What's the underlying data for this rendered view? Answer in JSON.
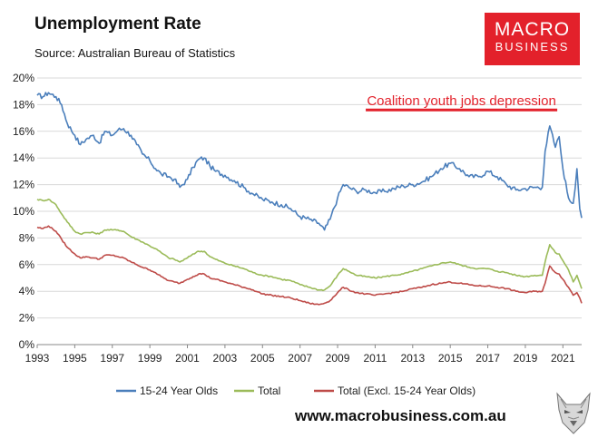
{
  "header": {
    "title": "Unemployment Rate",
    "source": "Source: Australian Bureau of Statistics"
  },
  "logo": {
    "line1": "MACRO",
    "line2": "BUSINESS"
  },
  "footer": {
    "url": "www.macrobusiness.com.au"
  },
  "colors": {
    "youth": "#4a7ebb",
    "total": "#9bbb59",
    "adult": "#be4b48",
    "annotation": "#e3212b",
    "brand": "#e3212b"
  },
  "chart_data": {
    "type": "line",
    "title": "Unemployment Rate",
    "xlabel": "",
    "ylabel": "",
    "xlim": [
      1993,
      2022
    ],
    "ylim": [
      0,
      20
    ],
    "y_ticks": [
      "0%",
      "2%",
      "4%",
      "6%",
      "8%",
      "10%",
      "12%",
      "14%",
      "16%",
      "18%",
      "20%"
    ],
    "x_ticks": [
      "1993",
      "1995",
      "1997",
      "1999",
      "2001",
      "2003",
      "2005",
      "2007",
      "2009",
      "2011",
      "2013",
      "2015",
      "2017",
      "2019",
      "2021"
    ],
    "grid": true,
    "legend_position": "bottom",
    "annotation": {
      "text": "Coalition youth jobs depression",
      "x_start": 2010.5,
      "x_end": 2020.7,
      "y": 17.6
    },
    "series": [
      {
        "name": "15-24 Year Olds",
        "color": "#4a7ebb",
        "points": [
          [
            1993.0,
            18.7
          ],
          [
            1993.3,
            18.6
          ],
          [
            1993.6,
            18.9
          ],
          [
            1994.0,
            18.6
          ],
          [
            1994.3,
            18.0
          ],
          [
            1994.6,
            16.6
          ],
          [
            1995.0,
            15.7
          ],
          [
            1995.3,
            15.0
          ],
          [
            1995.6,
            15.4
          ],
          [
            1996.0,
            15.7
          ],
          [
            1996.3,
            15.1
          ],
          [
            1996.6,
            16.0
          ],
          [
            1997.0,
            15.7
          ],
          [
            1997.3,
            16.1
          ],
          [
            1997.6,
            16.2
          ],
          [
            1998.0,
            15.7
          ],
          [
            1998.3,
            15.0
          ],
          [
            1998.6,
            14.3
          ],
          [
            1999.0,
            13.8
          ],
          [
            1999.3,
            13.2
          ],
          [
            1999.6,
            12.8
          ],
          [
            2000.0,
            12.6
          ],
          [
            2000.3,
            12.4
          ],
          [
            2000.6,
            11.8
          ],
          [
            2001.0,
            12.4
          ],
          [
            2001.3,
            13.3
          ],
          [
            2001.6,
            13.9
          ],
          [
            2001.9,
            14.0
          ],
          [
            2002.2,
            13.4
          ],
          [
            2002.5,
            13.0
          ],
          [
            2003.0,
            12.7
          ],
          [
            2003.5,
            12.3
          ],
          [
            2004.0,
            11.8
          ],
          [
            2004.5,
            11.3
          ],
          [
            2005.0,
            10.9
          ],
          [
            2005.5,
            10.7
          ],
          [
            2006.0,
            10.5
          ],
          [
            2006.5,
            10.2
          ],
          [
            2007.0,
            9.6
          ],
          [
            2007.5,
            9.4
          ],
          [
            2008.0,
            9.1
          ],
          [
            2008.3,
            8.6
          ],
          [
            2008.6,
            9.4
          ],
          [
            2009.0,
            11.0
          ],
          [
            2009.3,
            12.0
          ],
          [
            2009.6,
            11.8
          ],
          [
            2010.0,
            11.5
          ],
          [
            2010.5,
            11.6
          ],
          [
            2011.0,
            11.4
          ],
          [
            2011.5,
            11.5
          ],
          [
            2012.0,
            11.7
          ],
          [
            2012.5,
            11.9
          ],
          [
            2013.0,
            12.0
          ],
          [
            2013.5,
            12.2
          ],
          [
            2014.0,
            12.6
          ],
          [
            2014.5,
            13.2
          ],
          [
            2015.0,
            13.6
          ],
          [
            2015.5,
            13.2
          ],
          [
            2016.0,
            12.6
          ],
          [
            2016.5,
            12.6
          ],
          [
            2017.0,
            13.0
          ],
          [
            2017.5,
            12.6
          ],
          [
            2018.0,
            12.0
          ],
          [
            2018.5,
            11.6
          ],
          [
            2019.0,
            11.7
          ],
          [
            2019.5,
            11.8
          ],
          [
            2019.9,
            11.8
          ],
          [
            2020.05,
            14.5
          ],
          [
            2020.3,
            16.4
          ],
          [
            2020.6,
            14.8
          ],
          [
            2020.8,
            15.6
          ],
          [
            2021.0,
            13.2
          ],
          [
            2021.3,
            11.0
          ],
          [
            2021.55,
            10.6
          ],
          [
            2021.75,
            13.2
          ],
          [
            2021.9,
            10.2
          ],
          [
            2022.0,
            9.5
          ]
        ]
      },
      {
        "name": "Total",
        "color": "#9bbb59",
        "points": [
          [
            1993.0,
            10.9
          ],
          [
            1993.3,
            10.8
          ],
          [
            1993.6,
            10.9
          ],
          [
            1994.0,
            10.5
          ],
          [
            1994.3,
            9.8
          ],
          [
            1994.6,
            9.2
          ],
          [
            1995.0,
            8.5
          ],
          [
            1995.3,
            8.3
          ],
          [
            1995.6,
            8.4
          ],
          [
            1996.0,
            8.4
          ],
          [
            1996.3,
            8.3
          ],
          [
            1996.6,
            8.6
          ],
          [
            1997.0,
            8.6
          ],
          [
            1997.3,
            8.6
          ],
          [
            1997.6,
            8.5
          ],
          [
            1998.0,
            8.1
          ],
          [
            1998.3,
            7.9
          ],
          [
            1998.6,
            7.7
          ],
          [
            1999.0,
            7.4
          ],
          [
            1999.3,
            7.2
          ],
          [
            1999.6,
            6.9
          ],
          [
            2000.0,
            6.5
          ],
          [
            2000.3,
            6.4
          ],
          [
            2000.6,
            6.2
          ],
          [
            2001.0,
            6.5
          ],
          [
            2001.3,
            6.8
          ],
          [
            2001.6,
            7.0
          ],
          [
            2001.9,
            7.0
          ],
          [
            2002.2,
            6.6
          ],
          [
            2002.5,
            6.4
          ],
          [
            2003.0,
            6.1
          ],
          [
            2003.5,
            5.9
          ],
          [
            2004.0,
            5.7
          ],
          [
            2004.5,
            5.4
          ],
          [
            2005.0,
            5.2
          ],
          [
            2005.5,
            5.1
          ],
          [
            2006.0,
            4.9
          ],
          [
            2006.5,
            4.8
          ],
          [
            2007.0,
            4.5
          ],
          [
            2007.5,
            4.3
          ],
          [
            2008.0,
            4.1
          ],
          [
            2008.3,
            4.1
          ],
          [
            2008.6,
            4.4
          ],
          [
            2009.0,
            5.2
          ],
          [
            2009.3,
            5.7
          ],
          [
            2009.6,
            5.5
          ],
          [
            2010.0,
            5.2
          ],
          [
            2010.5,
            5.1
          ],
          [
            2011.0,
            5.0
          ],
          [
            2011.5,
            5.1
          ],
          [
            2012.0,
            5.2
          ],
          [
            2012.5,
            5.3
          ],
          [
            2013.0,
            5.5
          ],
          [
            2013.5,
            5.7
          ],
          [
            2014.0,
            5.9
          ],
          [
            2014.5,
            6.1
          ],
          [
            2015.0,
            6.2
          ],
          [
            2015.5,
            6.0
          ],
          [
            2016.0,
            5.8
          ],
          [
            2016.5,
            5.7
          ],
          [
            2017.0,
            5.7
          ],
          [
            2017.5,
            5.5
          ],
          [
            2018.0,
            5.4
          ],
          [
            2018.5,
            5.2
          ],
          [
            2019.0,
            5.1
          ],
          [
            2019.5,
            5.2
          ],
          [
            2019.9,
            5.2
          ],
          [
            2020.05,
            6.2
          ],
          [
            2020.3,
            7.5
          ],
          [
            2020.6,
            6.9
          ],
          [
            2020.8,
            6.8
          ],
          [
            2021.0,
            6.3
          ],
          [
            2021.3,
            5.6
          ],
          [
            2021.55,
            4.7
          ],
          [
            2021.75,
            5.2
          ],
          [
            2021.9,
            4.6
          ],
          [
            2022.0,
            4.2
          ]
        ]
      },
      {
        "name": "Total (Excl. 15-24 Year Olds)",
        "color": "#be4b48",
        "points": [
          [
            1993.0,
            8.8
          ],
          [
            1993.3,
            8.7
          ],
          [
            1993.6,
            8.9
          ],
          [
            1994.0,
            8.5
          ],
          [
            1994.3,
            7.9
          ],
          [
            1994.6,
            7.3
          ],
          [
            1995.0,
            6.8
          ],
          [
            1995.3,
            6.5
          ],
          [
            1995.6,
            6.6
          ],
          [
            1996.0,
            6.5
          ],
          [
            1996.3,
            6.4
          ],
          [
            1996.6,
            6.7
          ],
          [
            1997.0,
            6.7
          ],
          [
            1997.3,
            6.6
          ],
          [
            1997.6,
            6.5
          ],
          [
            1998.0,
            6.2
          ],
          [
            1998.3,
            6.0
          ],
          [
            1998.6,
            5.8
          ],
          [
            1999.0,
            5.6
          ],
          [
            1999.3,
            5.4
          ],
          [
            1999.6,
            5.1
          ],
          [
            2000.0,
            4.8
          ],
          [
            2000.3,
            4.7
          ],
          [
            2000.6,
            4.6
          ],
          [
            2001.0,
            4.9
          ],
          [
            2001.3,
            5.1
          ],
          [
            2001.6,
            5.3
          ],
          [
            2001.9,
            5.3
          ],
          [
            2002.2,
            5.0
          ],
          [
            2002.5,
            4.9
          ],
          [
            2003.0,
            4.7
          ],
          [
            2003.5,
            4.5
          ],
          [
            2004.0,
            4.3
          ],
          [
            2004.5,
            4.1
          ],
          [
            2005.0,
            3.8
          ],
          [
            2005.5,
            3.7
          ],
          [
            2006.0,
            3.6
          ],
          [
            2006.5,
            3.5
          ],
          [
            2007.0,
            3.3
          ],
          [
            2007.5,
            3.1
          ],
          [
            2008.0,
            3.0
          ],
          [
            2008.3,
            3.1
          ],
          [
            2008.6,
            3.3
          ],
          [
            2009.0,
            3.9
          ],
          [
            2009.3,
            4.3
          ],
          [
            2009.6,
            4.1
          ],
          [
            2010.0,
            3.9
          ],
          [
            2010.5,
            3.8
          ],
          [
            2011.0,
            3.7
          ],
          [
            2011.5,
            3.8
          ],
          [
            2012.0,
            3.9
          ],
          [
            2012.5,
            4.0
          ],
          [
            2013.0,
            4.2
          ],
          [
            2013.5,
            4.3
          ],
          [
            2014.0,
            4.5
          ],
          [
            2014.5,
            4.6
          ],
          [
            2015.0,
            4.7
          ],
          [
            2015.5,
            4.6
          ],
          [
            2016.0,
            4.5
          ],
          [
            2016.5,
            4.4
          ],
          [
            2017.0,
            4.4
          ],
          [
            2017.5,
            4.3
          ],
          [
            2018.0,
            4.2
          ],
          [
            2018.5,
            4.0
          ],
          [
            2019.0,
            3.9
          ],
          [
            2019.5,
            4.0
          ],
          [
            2019.9,
            4.0
          ],
          [
            2020.05,
            4.6
          ],
          [
            2020.3,
            5.9
          ],
          [
            2020.6,
            5.4
          ],
          [
            2020.8,
            5.3
          ],
          [
            2021.0,
            4.9
          ],
          [
            2021.3,
            4.3
          ],
          [
            2021.55,
            3.7
          ],
          [
            2021.75,
            3.9
          ],
          [
            2021.9,
            3.5
          ],
          [
            2022.0,
            3.1
          ]
        ]
      }
    ]
  }
}
